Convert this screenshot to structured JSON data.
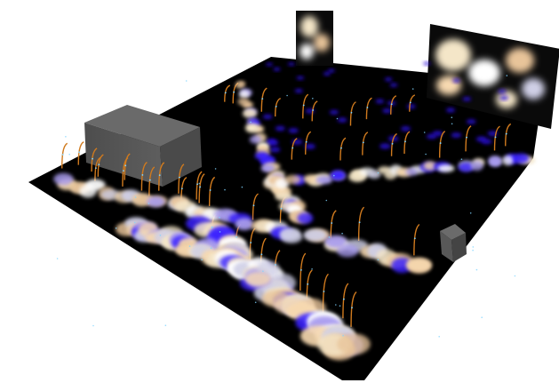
{
  "scene": {
    "floor_color": "#000000",
    "background_color": "#ffffff",
    "block_color": "#555555",
    "block_top_color": "#6a6a6a",
    "stem_color": "#d07a1e",
    "glow_colors": [
      "#f4e6c8",
      "#e8c49a",
      "#cfcfe6",
      "#ffffff",
      "#a99cf0",
      "#3a22ff",
      "#f7d9b0"
    ],
    "bare_spot_color": "#2a10d8",
    "droplet_color": "#7fd4ff"
  }
}
